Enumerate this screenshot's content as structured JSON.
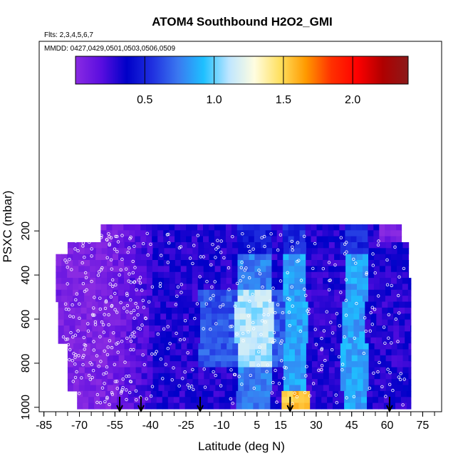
{
  "chart_data": {
    "type": "heatmap",
    "title": "ATOM4 Southbound H2O2_GMI",
    "subtitle_flights": "Flts: 2,3,4,5,6,7",
    "subtitle_dates": "MMDD: 0427,0429,0501,0503,0506,0509",
    "xlabel": "Latitude (deg N)",
    "ylabel": "PSXC (mbar)",
    "xlim": [
      -87,
      83
    ],
    "ylim": [
      1020,
      -660
    ],
    "x_ticks": [
      -85,
      -70,
      -55,
      -40,
      -25,
      -10,
      5,
      15,
      30,
      45,
      60,
      75
    ],
    "x_tick_labels": [
      "-85",
      "-70",
      "-55",
      "-40",
      "-25",
      "-10",
      "5",
      "15",
      "30",
      "45",
      "60",
      "75"
    ],
    "y_ticks": [
      200,
      400,
      600,
      800,
      1000
    ],
    "y_tick_labels": [
      "200",
      "400",
      "600",
      "800",
      "1000"
    ],
    "colorbar": {
      "range": [
        0,
        2.4
      ],
      "ticks": [
        0.5,
        1.0,
        1.5,
        2.0
      ],
      "tick_labels": [
        "0.5",
        "1.0",
        "1.5",
        "2.0"
      ],
      "colors": [
        "#8a2be2",
        "#5a0ee0",
        "#0000c8",
        "#2030e0",
        "#3a78f0",
        "#1ec0ff",
        "#bfe6ff",
        "#fffde0",
        "#ffe060",
        "#ff9a00",
        "#ff3000",
        "#ff0000",
        "#b00000",
        "#8b1a1a"
      ]
    },
    "arrows_latitude": [
      -53,
      -44,
      -19,
      19,
      61
    ],
    "grid": false,
    "legend": "colorbar-top"
  }
}
